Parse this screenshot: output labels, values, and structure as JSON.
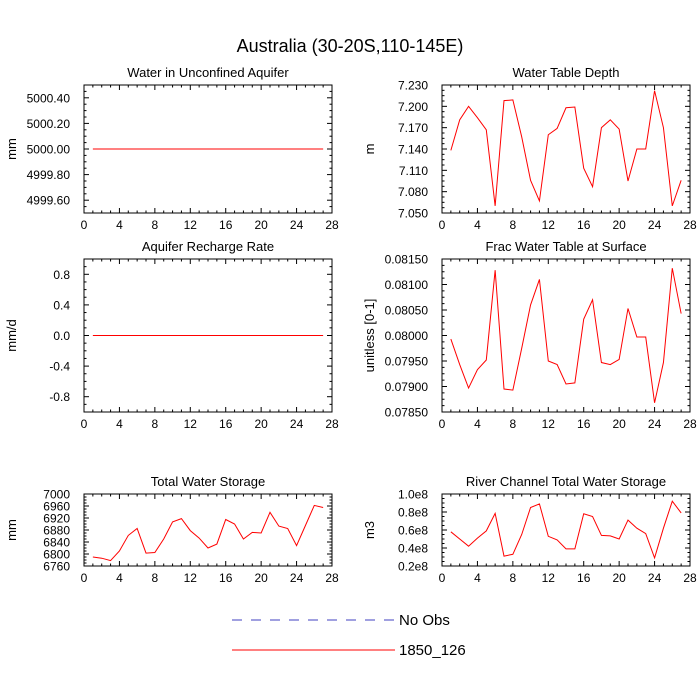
{
  "title": "Australia (30-20S,110-145E)",
  "legend": [
    {
      "label": "No Obs",
      "color": "#4040c0",
      "style": "dashed"
    },
    {
      "label": "1850_126",
      "color": "#ff0000",
      "style": "solid"
    }
  ],
  "chart_data": [
    {
      "type": "line",
      "title": "Water in Unconfined Aquifer",
      "ylabel": "mm",
      "xlim": [
        0,
        28
      ],
      "ylim": [
        4999.5,
        5000.5
      ],
      "xticks": [
        0,
        4,
        8,
        12,
        16,
        20,
        24,
        28
      ],
      "yticks": [
        4999.6,
        4999.8,
        5000.0,
        5000.2,
        5000.4
      ],
      "yticklabels": [
        "4999.60",
        "4999.80",
        "5000.00",
        "5000.20",
        "5000.40"
      ],
      "series": [
        {
          "name": "1850_126",
          "color": "#ff0000",
          "x": [
            1,
            2,
            3,
            4,
            5,
            6,
            7,
            8,
            9,
            10,
            11,
            12,
            13,
            14,
            15,
            16,
            17,
            18,
            19,
            20,
            21,
            22,
            23,
            24,
            25,
            26,
            27
          ],
          "values": [
            5000,
            5000,
            5000,
            5000,
            5000,
            5000,
            5000,
            5000,
            5000,
            5000,
            5000,
            5000,
            5000,
            5000,
            5000,
            5000,
            5000,
            5000,
            5000,
            5000,
            5000,
            5000,
            5000,
            5000,
            5000,
            5000,
            5000
          ]
        }
      ]
    },
    {
      "type": "line",
      "title": "Water Table Depth",
      "ylabel": "m",
      "xlim": [
        0,
        28
      ],
      "ylim": [
        7.05,
        7.23
      ],
      "xticks": [
        0,
        4,
        8,
        12,
        16,
        20,
        24,
        28
      ],
      "yticks": [
        7.05,
        7.08,
        7.11,
        7.14,
        7.17,
        7.2,
        7.23
      ],
      "yticklabels": [
        "7.050",
        "7.080",
        "7.110",
        "7.140",
        "7.170",
        "7.200",
        "7.230"
      ],
      "series": [
        {
          "name": "1850_126",
          "color": "#ff0000",
          "x": [
            1,
            2,
            3,
            4,
            5,
            6,
            7,
            8,
            9,
            10,
            11,
            12,
            13,
            14,
            15,
            16,
            17,
            18,
            19,
            20,
            21,
            22,
            23,
            24,
            25,
            26,
            27
          ],
          "values": [
            7.138,
            7.181,
            7.2,
            7.184,
            7.167,
            7.06,
            7.208,
            7.209,
            7.157,
            7.096,
            7.067,
            7.16,
            7.169,
            7.198,
            7.199,
            7.113,
            7.087,
            7.17,
            7.181,
            7.168,
            7.095,
            7.14,
            7.14,
            7.222,
            7.17,
            7.06,
            7.096
          ]
        }
      ]
    },
    {
      "type": "line",
      "title": "Aquifer Recharge Rate",
      "ylabel": "mm/d",
      "xlim": [
        0,
        28
      ],
      "ylim": [
        -1.0,
        1.0
      ],
      "xticks": [
        0,
        4,
        8,
        12,
        16,
        20,
        24,
        28
      ],
      "yticks": [
        -0.8,
        -0.4,
        0.0,
        0.4,
        0.8
      ],
      "yticklabels": [
        "-0.8",
        "-0.4",
        "0.0",
        "0.4",
        "0.8"
      ],
      "series": [
        {
          "name": "1850_126",
          "color": "#ff0000",
          "x": [
            1,
            2,
            3,
            4,
            5,
            6,
            7,
            8,
            9,
            10,
            11,
            12,
            13,
            14,
            15,
            16,
            17,
            18,
            19,
            20,
            21,
            22,
            23,
            24,
            25,
            26,
            27
          ],
          "values": [
            0,
            0,
            0,
            0,
            0,
            0,
            0,
            0,
            0,
            0,
            0,
            0,
            0,
            0,
            0,
            0,
            0,
            0,
            0,
            0,
            0,
            0,
            0,
            0,
            0,
            0,
            0
          ]
        }
      ]
    },
    {
      "type": "line",
      "title": "Frac Water Table at Surface",
      "ylabel": "unitless [0-1]",
      "xlim": [
        0,
        28
      ],
      "ylim": [
        0.0785,
        0.0815
      ],
      "xticks": [
        0,
        4,
        8,
        12,
        16,
        20,
        24,
        28
      ],
      "yticks": [
        0.0785,
        0.079,
        0.0795,
        0.08,
        0.0805,
        0.081,
        0.0815
      ],
      "yticklabels": [
        "0.07850",
        "0.07900",
        "0.07950",
        "0.08000",
        "0.08050",
        "0.08100",
        "0.08150"
      ],
      "series": [
        {
          "name": "1850_126",
          "color": "#ff0000",
          "x": [
            1,
            2,
            3,
            4,
            5,
            6,
            7,
            8,
            9,
            10,
            11,
            12,
            13,
            14,
            15,
            16,
            17,
            18,
            19,
            20,
            21,
            22,
            23,
            24,
            25,
            26,
            27
          ],
          "values": [
            0.07993,
            0.07943,
            0.07897,
            0.07933,
            0.07952,
            0.08128,
            0.07895,
            0.07893,
            0.07975,
            0.0806,
            0.0811,
            0.0795,
            0.07943,
            0.07905,
            0.07907,
            0.08032,
            0.0807,
            0.07947,
            0.07943,
            0.07953,
            0.08053,
            0.07997,
            0.07997,
            0.07868,
            0.07947,
            0.08132,
            0.08043
          ]
        }
      ]
    },
    {
      "type": "line",
      "title": "Total Water Storage",
      "ylabel": "mm",
      "xlim": [
        0,
        28
      ],
      "ylim": [
        6760,
        7000
      ],
      "xticks": [
        0,
        4,
        8,
        12,
        16,
        20,
        24,
        28
      ],
      "yticks": [
        6760,
        6800,
        6840,
        6880,
        6920,
        6960,
        7000
      ],
      "yticklabels": [
        "6760",
        "6800",
        "6840",
        "6880",
        "6920",
        "6960",
        "7000"
      ],
      "series": [
        {
          "name": "1850_126",
          "color": "#ff0000",
          "x": [
            1,
            2,
            3,
            4,
            5,
            6,
            7,
            8,
            9,
            10,
            11,
            12,
            13,
            14,
            15,
            16,
            17,
            18,
            19,
            20,
            21,
            22,
            23,
            24,
            25,
            26,
            27
          ],
          "values": [
            6790,
            6786,
            6778,
            6810,
            6862,
            6885,
            6803,
            6805,
            6850,
            6907,
            6918,
            6878,
            6853,
            6820,
            6833,
            6915,
            6900,
            6850,
            6872,
            6870,
            6939,
            6893,
            6885,
            6828,
            6895,
            6962,
            6955
          ]
        }
      ]
    },
    {
      "type": "line",
      "title": "River Channel Total Water Storage",
      "ylabel": "m3",
      "xlim": [
        0,
        28
      ],
      "ylim": [
        20000000.0,
        100000000.0
      ],
      "xticks": [
        0,
        4,
        8,
        12,
        16,
        20,
        24,
        28
      ],
      "yticks": [
        20000000.0,
        40000000.0,
        60000000.0,
        80000000.0,
        100000000.0
      ],
      "yticklabels": [
        "0.2e8",
        "0.4e8",
        "0.6e8",
        "0.8e8",
        "1.0e8"
      ],
      "series": [
        {
          "name": "1850_126",
          "color": "#ff0000",
          "x": [
            1,
            2,
            3,
            4,
            5,
            6,
            7,
            8,
            9,
            10,
            11,
            12,
            13,
            14,
            15,
            16,
            17,
            18,
            19,
            20,
            21,
            22,
            23,
            24,
            25,
            26,
            27
          ],
          "values": [
            58000000.0,
            50000000.0,
            42000000.0,
            51000000.0,
            59000000.0,
            78500000.0,
            31000000.0,
            33000000.0,
            55000000.0,
            85000000.0,
            89000000.0,
            53000000.0,
            49000000.0,
            39000000.0,
            39000000.0,
            78000000.0,
            75000000.0,
            54000000.0,
            53500000.0,
            50000000.0,
            71000000.0,
            62000000.0,
            56000000.0,
            29000000.0,
            62000000.0,
            92000000.0,
            79000000.0
          ]
        }
      ]
    }
  ]
}
